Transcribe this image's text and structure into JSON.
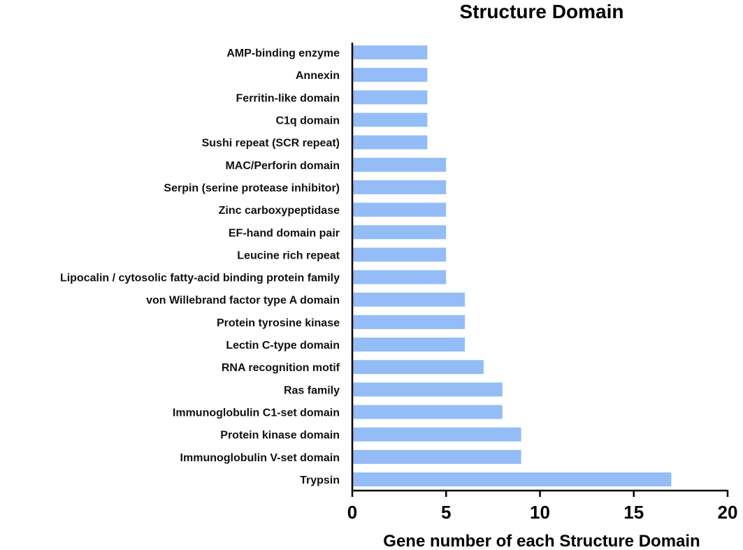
{
  "chart_data": {
    "type": "bar",
    "orientation": "horizontal",
    "title": "Structure Domain",
    "xlabel": "Gene number of each Structure Domain",
    "ylabel": "",
    "xlim": [
      0,
      20
    ],
    "xticks": [
      0,
      5,
      10,
      15,
      20
    ],
    "xtick_labels": [
      "0",
      "5",
      "10",
      "15",
      "20"
    ],
    "grid": false,
    "legend": "none",
    "bar_color": "#94bdf7",
    "categories": [
      "AMP-binding enzyme",
      "Annexin",
      "Ferritin-like domain",
      "C1q domain",
      "Sushi repeat (SCR repeat)",
      "MAC/Perforin domain",
      "Serpin (serine protease inhibitor)",
      "Zinc carboxypeptidase",
      "EF-hand domain pair",
      "Leucine rich repeat",
      "Lipocalin / cytosolic fatty-acid binding protein family",
      "von Willebrand factor type A domain",
      "Protein tyrosine kinase",
      "Lectin C-type domain",
      "RNA recognition motif",
      "Ras family",
      "Immunoglobulin C1-set domain",
      "Protein kinase domain",
      "Immunoglobulin V-set domain",
      "Trypsin"
    ],
    "values": [
      4,
      4,
      4,
      4,
      4,
      5,
      5,
      5,
      5,
      5,
      5,
      6,
      6,
      6,
      7,
      8,
      8,
      9,
      9,
      17
    ]
  }
}
